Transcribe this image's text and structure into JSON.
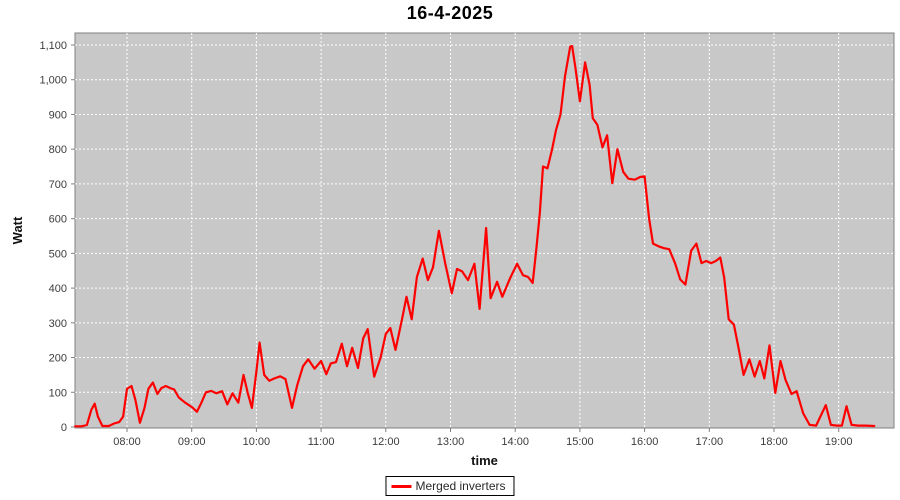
{
  "title": "16-4-2025",
  "colors": {
    "plot_background": "#c8c8c8",
    "grid": "#ffffff",
    "axis": "#808080",
    "tick_text": "#3c3c3c",
    "series": "#ff0000",
    "title_text": "#000000"
  },
  "legend": {
    "position": "bottom-center",
    "label": "Merged inverters"
  },
  "chart_data": {
    "type": "line",
    "title": "16-4-2025",
    "xlabel": "time",
    "ylabel": "Watt",
    "grid": "white dashed, hourly vertical, every 100 W horizontal",
    "x_tick_labels": [
      "08:00",
      "09:00",
      "10:00",
      "11:00",
      "12:00",
      "13:00",
      "14:00",
      "15:00",
      "16:00",
      "17:00",
      "18:00",
      "19:00"
    ],
    "x_tick_hours": [
      8,
      9,
      10,
      11,
      12,
      13,
      14,
      15,
      16,
      17,
      18,
      19
    ],
    "y_ticks": [
      0,
      100,
      200,
      300,
      400,
      500,
      600,
      700,
      800,
      900,
      1000,
      1100
    ],
    "y_tick_labels": [
      "0",
      "100",
      "200",
      "300",
      "400",
      "500",
      "600",
      "700",
      "800",
      "900",
      "1,000",
      "1,100"
    ],
    "xlim_hours": [
      7.2,
      19.85
    ],
    "ylim": [
      0,
      1135
    ],
    "legend_entries": [
      {
        "label": "Merged inverters",
        "color": "#ff0000"
      }
    ],
    "series": [
      {
        "name": "Merged inverters",
        "color": "#ff0000",
        "points_hour_watt": [
          [
            7.2,
            2
          ],
          [
            7.3,
            2
          ],
          [
            7.38,
            6
          ],
          [
            7.45,
            50
          ],
          [
            7.5,
            67
          ],
          [
            7.55,
            30
          ],
          [
            7.62,
            3
          ],
          [
            7.72,
            3
          ],
          [
            7.8,
            10
          ],
          [
            7.88,
            14
          ],
          [
            7.94,
            30
          ],
          [
            8.0,
            110
          ],
          [
            8.07,
            118
          ],
          [
            8.13,
            78
          ],
          [
            8.2,
            12
          ],
          [
            8.27,
            55
          ],
          [
            8.33,
            110
          ],
          [
            8.4,
            128
          ],
          [
            8.47,
            95
          ],
          [
            8.53,
            112
          ],
          [
            8.6,
            118
          ],
          [
            8.67,
            112
          ],
          [
            8.73,
            108
          ],
          [
            8.8,
            85
          ],
          [
            8.9,
            70
          ],
          [
            9.0,
            58
          ],
          [
            9.08,
            44
          ],
          [
            9.15,
            70
          ],
          [
            9.22,
            100
          ],
          [
            9.3,
            104
          ],
          [
            9.38,
            97
          ],
          [
            9.47,
            103
          ],
          [
            9.55,
            65
          ],
          [
            9.63,
            97
          ],
          [
            9.72,
            70
          ],
          [
            9.8,
            150
          ],
          [
            9.87,
            95
          ],
          [
            9.93,
            55
          ],
          [
            10.0,
            160
          ],
          [
            10.05,
            243
          ],
          [
            10.12,
            150
          ],
          [
            10.2,
            133
          ],
          [
            10.28,
            140
          ],
          [
            10.37,
            146
          ],
          [
            10.45,
            138
          ],
          [
            10.55,
            55
          ],
          [
            10.63,
            120
          ],
          [
            10.72,
            175
          ],
          [
            10.8,
            195
          ],
          [
            10.9,
            168
          ],
          [
            11.0,
            190
          ],
          [
            11.08,
            152
          ],
          [
            11.15,
            183
          ],
          [
            11.23,
            187
          ],
          [
            11.32,
            240
          ],
          [
            11.4,
            175
          ],
          [
            11.48,
            228
          ],
          [
            11.57,
            170
          ],
          [
            11.65,
            255
          ],
          [
            11.72,
            282
          ],
          [
            11.82,
            145
          ],
          [
            11.92,
            200
          ],
          [
            12.0,
            268
          ],
          [
            12.07,
            285
          ],
          [
            12.15,
            222
          ],
          [
            12.25,
            310
          ],
          [
            12.32,
            375
          ],
          [
            12.4,
            310
          ],
          [
            12.48,
            432
          ],
          [
            12.57,
            485
          ],
          [
            12.65,
            423
          ],
          [
            12.73,
            460
          ],
          [
            12.82,
            565
          ],
          [
            12.92,
            470
          ],
          [
            13.02,
            385
          ],
          [
            13.1,
            455
          ],
          [
            13.18,
            448
          ],
          [
            13.27,
            423
          ],
          [
            13.37,
            470
          ],
          [
            13.45,
            340
          ],
          [
            13.55,
            573
          ],
          [
            13.62,
            371
          ],
          [
            13.72,
            418
          ],
          [
            13.8,
            375
          ],
          [
            13.92,
            428
          ],
          [
            14.03,
            470
          ],
          [
            14.12,
            437
          ],
          [
            14.2,
            432
          ],
          [
            14.27,
            415
          ],
          [
            14.33,
            520
          ],
          [
            14.38,
            615
          ],
          [
            14.43,
            750
          ],
          [
            14.5,
            745
          ],
          [
            14.57,
            800
          ],
          [
            14.63,
            855
          ],
          [
            14.7,
            900
          ],
          [
            14.77,
            1010
          ],
          [
            14.85,
            1095
          ],
          [
            14.88,
            1097
          ],
          [
            14.93,
            1035
          ],
          [
            15.0,
            938
          ],
          [
            15.08,
            1050
          ],
          [
            15.15,
            985
          ],
          [
            15.2,
            889
          ],
          [
            15.27,
            870
          ],
          [
            15.35,
            805
          ],
          [
            15.42,
            840
          ],
          [
            15.5,
            702
          ],
          [
            15.58,
            800
          ],
          [
            15.67,
            735
          ],
          [
            15.75,
            715
          ],
          [
            15.85,
            712
          ],
          [
            15.93,
            720
          ],
          [
            16.0,
            722
          ],
          [
            16.07,
            600
          ],
          [
            16.13,
            528
          ],
          [
            16.22,
            520
          ],
          [
            16.3,
            515
          ],
          [
            16.38,
            512
          ],
          [
            16.47,
            472
          ],
          [
            16.55,
            425
          ],
          [
            16.63,
            410
          ],
          [
            16.72,
            508
          ],
          [
            16.8,
            528
          ],
          [
            16.88,
            472
          ],
          [
            16.95,
            478
          ],
          [
            17.03,
            472
          ],
          [
            17.1,
            478
          ],
          [
            17.17,
            488
          ],
          [
            17.23,
            430
          ],
          [
            17.3,
            310
          ],
          [
            17.38,
            295
          ],
          [
            17.45,
            230
          ],
          [
            17.53,
            150
          ],
          [
            17.62,
            195
          ],
          [
            17.7,
            145
          ],
          [
            17.78,
            190
          ],
          [
            17.85,
            140
          ],
          [
            17.93,
            235
          ],
          [
            18.02,
            98
          ],
          [
            18.1,
            190
          ],
          [
            18.18,
            135
          ],
          [
            18.27,
            95
          ],
          [
            18.35,
            103
          ],
          [
            18.45,
            40
          ],
          [
            18.55,
            6
          ],
          [
            18.65,
            4
          ],
          [
            18.73,
            35
          ],
          [
            18.8,
            63
          ],
          [
            18.88,
            6
          ],
          [
            18.97,
            4
          ],
          [
            19.05,
            4
          ],
          [
            19.12,
            60
          ],
          [
            19.2,
            6
          ],
          [
            19.3,
            4
          ],
          [
            19.42,
            4
          ],
          [
            19.55,
            3
          ]
        ]
      }
    ]
  }
}
